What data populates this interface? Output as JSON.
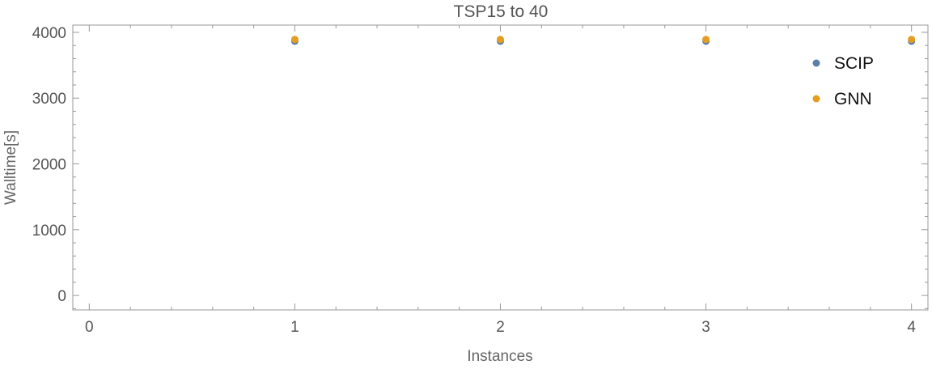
{
  "chart_data": {
    "type": "scatter",
    "title": "TSP15 to 40",
    "xlabel": "Instances",
    "ylabel": "Walltime[s]",
    "xlim": [
      -0.08,
      4.08
    ],
    "ylim": [
      -220,
      4110
    ],
    "xticks": [
      0,
      1,
      2,
      3,
      4
    ],
    "yticks": [
      0,
      1000,
      2000,
      3000,
      4000
    ],
    "xtick_labels": [
      "0",
      "1",
      "2",
      "3",
      "4"
    ],
    "ytick_labels": [
      "0",
      "1000",
      "2000",
      "3000",
      "4000"
    ],
    "grid": false,
    "legend_position": "top-right",
    "series": [
      {
        "name": "SCIP",
        "color": "#5b7fa8",
        "x": [
          1,
          2,
          3,
          4
        ],
        "y": [
          3865,
          3865,
          3865,
          3865
        ]
      },
      {
        "name": "GNN",
        "color": "#e39e21",
        "x": [
          1,
          2,
          3,
          4
        ],
        "y": [
          3892,
          3892,
          3892,
          3892
        ]
      }
    ]
  }
}
